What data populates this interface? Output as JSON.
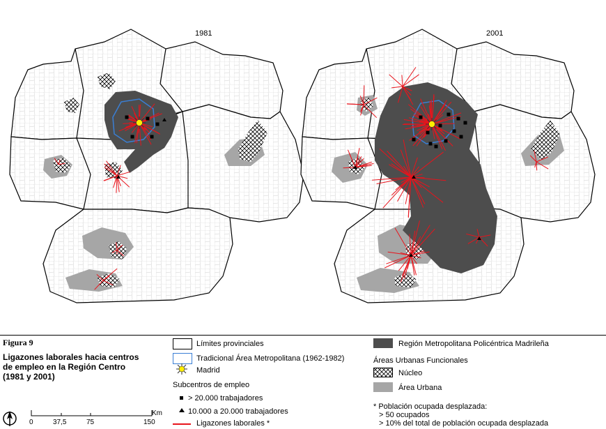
{
  "figure": {
    "label": "Figura 9",
    "title_lines": [
      "Ligazones laborales hacia centros",
      "de empleo en la Región Centro",
      "(1981 y 2001)"
    ]
  },
  "maps": [
    {
      "year": "1981"
    },
    {
      "year": "2001"
    }
  ],
  "legend": {
    "provincial_limits": "Límites provinciales",
    "traditional_area": "Tradicional Área Metropolitana (1962-1982)",
    "madrid": "Madrid",
    "subcenters_title": "Subcentros de empleo",
    "subcenter_large": "> 20.000 trabajadores",
    "subcenter_medium": "10.000 a 20.000 trabajadores",
    "links": "Ligazones laborales *",
    "polycentric_region": "Región Metropolitana Policéntrica Madrileña",
    "functional_areas_title": "Áreas Urbanas Funcionales",
    "nucleus": "Núcleo",
    "urban_area": "Área Urbana",
    "note_title": "* Población ocupada desplazada:",
    "note_1": "> 50 ocupados",
    "note_2": "> 10% del total de población ocupada desplazada"
  },
  "scale": {
    "unit": "Km",
    "ticks": [
      "0",
      "37,5",
      "75",
      "150"
    ]
  },
  "colors": {
    "region_dark": "#4d4d4d",
    "urban_area": "#a6a6a6",
    "traditional_area_outline": "#3a7fd5",
    "links": "#e8141c",
    "madrid_star": "#ffee00"
  }
}
